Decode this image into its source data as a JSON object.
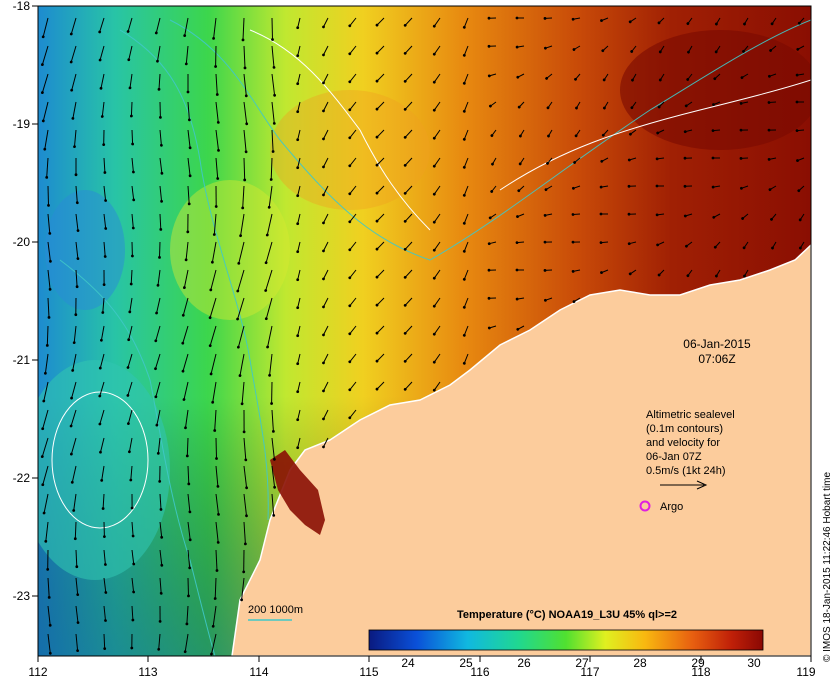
{
  "map": {
    "date_line1": "06-Jan-2015",
    "date_line2": "07:06Z",
    "legend_lines": [
      "Altimetric sealevel",
      "(0.1m contours)",
      "and velocity for",
      "06-Jan 07Z",
      "0.5m/s (1kt 24h)"
    ],
    "argo_label": "Argo",
    "bathymetry_label": "200  1000m",
    "colorbar_title": "Temperature (°C) NOAA19_L3U 45% ql>=2",
    "colorbar_ticks": [
      "24",
      "25",
      "26",
      "27",
      "28",
      "29",
      "30"
    ],
    "credit": "© IMOS 18-Jan-2015 11:22:46 Hobart time",
    "lon_ticks": [
      "112",
      "113",
      "114",
      "115",
      "116",
      "117",
      "118",
      "119"
    ],
    "lat_ticks": [
      "-18",
      "-19",
      "-20",
      "-21",
      "-22",
      "-23"
    ],
    "colors": {
      "land": "#fccc9c",
      "argo_marker": "#e020e0",
      "bathymetry": "#40c8c8"
    }
  }
}
